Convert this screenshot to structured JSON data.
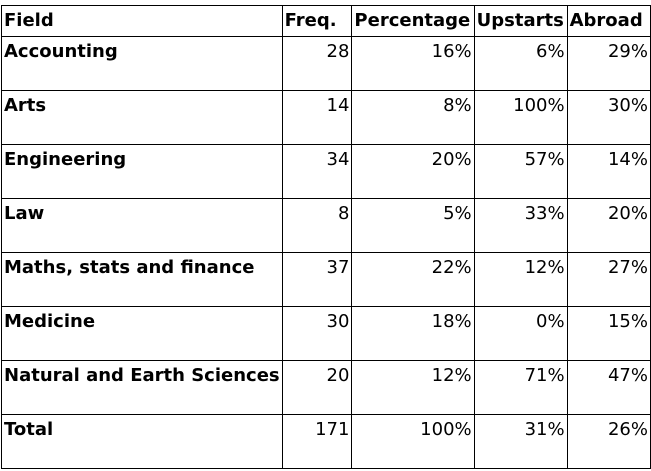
{
  "table": {
    "headers": [
      "Field",
      "Freq.",
      "Percentage",
      "Upstarts",
      "Abroad"
    ],
    "rows": [
      {
        "field": "Accounting",
        "freq": "28",
        "percentage": "16%",
        "upstarts": "6%",
        "abroad": "29%"
      },
      {
        "field": "Arts",
        "freq": "14",
        "percentage": "8%",
        "upstarts": "100%",
        "abroad": "30%"
      },
      {
        "field": "Engineering",
        "freq": "34",
        "percentage": "20%",
        "upstarts": "57%",
        "abroad": "14%"
      },
      {
        "field": "Law",
        "freq": "8",
        "percentage": "5%",
        "upstarts": "33%",
        "abroad": "20%"
      },
      {
        "field": "Maths, stats and finance",
        "freq": "37",
        "percentage": "22%",
        "upstarts": "12%",
        "abroad": "27%"
      },
      {
        "field": "Medicine",
        "freq": "30",
        "percentage": "18%",
        "upstarts": "0%",
        "abroad": "15%"
      },
      {
        "field": "Natural and Earth Sciences",
        "freq": "20",
        "percentage": "12%",
        "upstarts": "71%",
        "abroad": "47%"
      },
      {
        "field": "Total",
        "freq": "171",
        "percentage": "100%",
        "upstarts": "31%",
        "abroad": "26%"
      }
    ]
  }
}
